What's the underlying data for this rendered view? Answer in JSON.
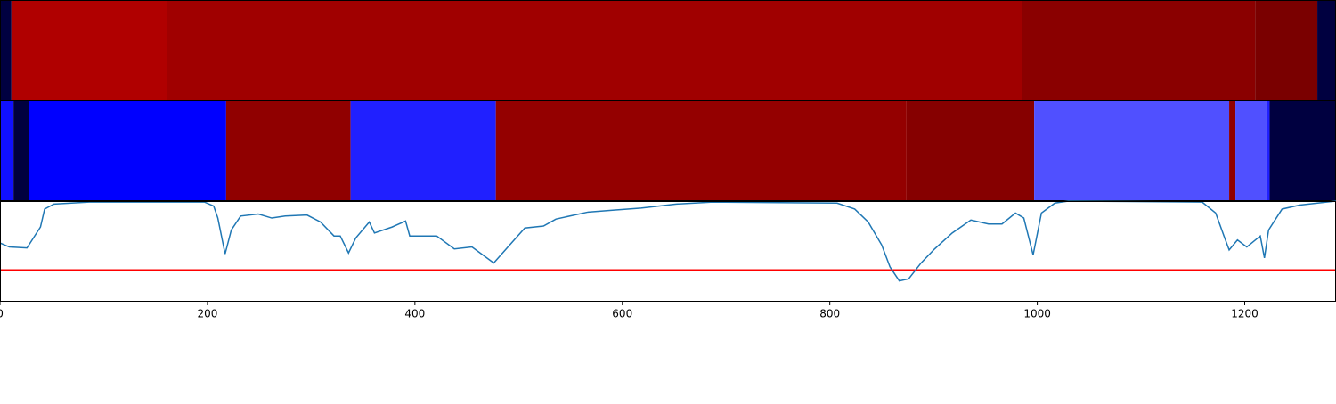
{
  "chart_data": [
    {
      "type": "strip",
      "xlim": [
        0,
        1288
      ],
      "segments": [
        {
          "start": 0,
          "end": 11,
          "color": "#000040"
        },
        {
          "start": 11,
          "end": 161,
          "color": "#b00000"
        },
        {
          "start": 161,
          "end": 985,
          "color": "#a00000"
        },
        {
          "start": 985,
          "end": 1210,
          "color": "#8a0000"
        },
        {
          "start": 1210,
          "end": 1270,
          "color": "#7a0000"
        },
        {
          "start": 1270,
          "end": 1288,
          "color": "#000040"
        }
      ]
    },
    {
      "type": "strip",
      "xlim": [
        0,
        1288
      ],
      "segments": [
        {
          "start": 0,
          "end": 13,
          "color": "#1010ff"
        },
        {
          "start": 13,
          "end": 28,
          "color": "#000040"
        },
        {
          "start": 28,
          "end": 218,
          "color": "#0000ff"
        },
        {
          "start": 218,
          "end": 338,
          "color": "#900000"
        },
        {
          "start": 338,
          "end": 478,
          "color": "#2020ff"
        },
        {
          "start": 478,
          "end": 874,
          "color": "#940000"
        },
        {
          "start": 874,
          "end": 997,
          "color": "#860000"
        },
        {
          "start": 997,
          "end": 1185,
          "color": "#5050ff"
        },
        {
          "start": 1185,
          "end": 1191,
          "color": "#900000"
        },
        {
          "start": 1191,
          "end": 1221,
          "color": "#5050ff"
        },
        {
          "start": 1221,
          "end": 1224,
          "color": "#2020ff"
        },
        {
          "start": 1224,
          "end": 1288,
          "color": "#000040"
        }
      ]
    },
    {
      "type": "line",
      "xlim": [
        0,
        1288
      ],
      "ylim": [
        0,
        1
      ],
      "xticks": [
        0,
        200,
        400,
        600,
        800,
        1000,
        1200
      ],
      "x": [
        0,
        9,
        26,
        39,
        43,
        52,
        86,
        197,
        206,
        210,
        217,
        223,
        232,
        249,
        262,
        275,
        296,
        309,
        322,
        328,
        336,
        343,
        356,
        361,
        378,
        391,
        395,
        421,
        438,
        455,
        476,
        494,
        506,
        524,
        536,
        567,
        592,
        618,
        652,
        687,
        807,
        824,
        837,
        850,
        858,
        867,
        876,
        888,
        901,
        918,
        936,
        953,
        966,
        979,
        987,
        996,
        1004,
        1017,
        1030,
        1159,
        1172,
        1180,
        1185,
        1193,
        1202,
        1215,
        1219,
        1223,
        1236,
        1253,
        1279,
        1288
      ],
      "series": [
        {
          "color": "#1f77b4",
          "values": [
            0.58,
            0.54,
            0.53,
            0.74,
            0.92,
            0.97,
            0.99,
            0.99,
            0.95,
            0.83,
            0.47,
            0.71,
            0.85,
            0.87,
            0.83,
            0.85,
            0.86,
            0.79,
            0.65,
            0.65,
            0.48,
            0.63,
            0.79,
            0.68,
            0.74,
            0.8,
            0.65,
            0.65,
            0.52,
            0.54,
            0.38,
            0.59,
            0.73,
            0.75,
            0.82,
            0.89,
            0.91,
            0.93,
            0.97,
            0.99,
            0.98,
            0.92,
            0.79,
            0.56,
            0.34,
            0.2,
            0.22,
            0.38,
            0.52,
            0.68,
            0.81,
            0.77,
            0.77,
            0.88,
            0.83,
            0.46,
            0.88,
            0.98,
            1.0,
            0.99,
            0.88,
            0.65,
            0.51,
            0.61,
            0.54,
            0.65,
            0.43,
            0.71,
            0.92,
            0.96,
            0.99,
            1.0
          ]
        }
      ],
      "hline": {
        "value": 0.31,
        "color": "#ff0000"
      }
    }
  ]
}
